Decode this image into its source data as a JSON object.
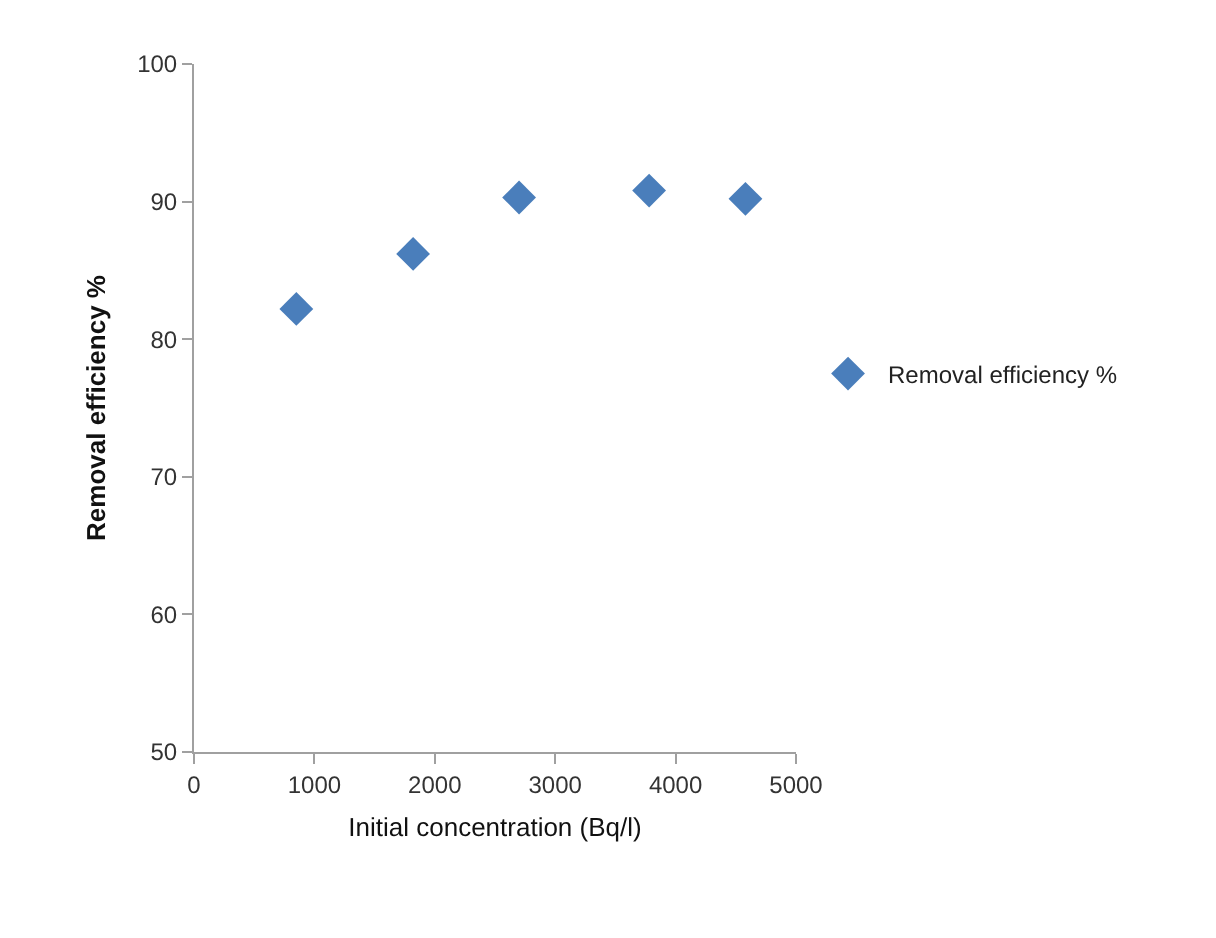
{
  "chart_data": {
    "type": "scatter",
    "xlabel": "Initial concentration (Bq/l)",
    "ylabel": "Removal efficiency %",
    "x": [
      850,
      1820,
      2700,
      3780,
      4580
    ],
    "series": [
      {
        "name": "Removal efficiency %",
        "color": "#4a7ebb",
        "values": [
          82.2,
          86.2,
          90.3,
          90.8,
          90.2
        ]
      }
    ],
    "xlim": [
      0,
      5000
    ],
    "xticks": [
      0,
      1000,
      2000,
      3000,
      4000,
      5000
    ],
    "ylim": [
      50,
      100
    ],
    "yticks": [
      50,
      60,
      70,
      80,
      90,
      100
    ],
    "marker": "diamond",
    "legend": "right"
  }
}
